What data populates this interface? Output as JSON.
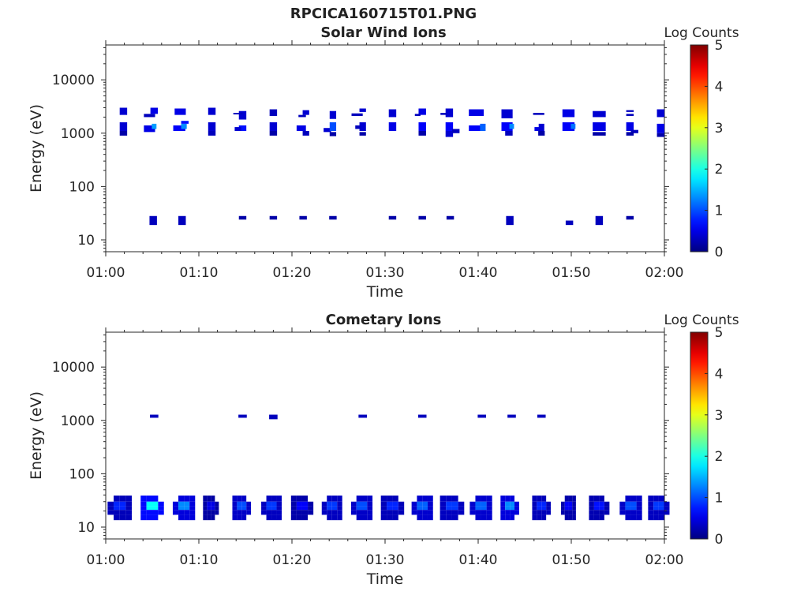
{
  "figure": {
    "filename": "RPCICA160715T01.PNG",
    "background": "#ffffff"
  },
  "chart_data": [
    {
      "type": "heatmap",
      "title": "Solar Wind Ions",
      "xlabel": "Time",
      "ylabel": "Energy (eV)",
      "x_ticks": [
        "01:00",
        "01:10",
        "01:20",
        "01:30",
        "01:40",
        "01:50",
        "02:00"
      ],
      "xlim_minutes": [
        0,
        60
      ],
      "y_scale": "log",
      "y_ticks": [
        "10",
        "100",
        "1000",
        "10000"
      ],
      "ylim": [
        6,
        45000
      ],
      "colorbar": {
        "label": "Log Counts",
        "range": [
          0,
          5
        ],
        "ticks": [
          "0",
          "1",
          "2",
          "3",
          "4",
          "5"
        ],
        "colormap": "jet"
      },
      "cells": [
        {
          "t": 1.9,
          "w": 0.8,
          "e": [
            1100,
            1600
          ],
          "v": 0.4
        },
        {
          "t": 1.9,
          "w": 0.8,
          "e": [
            2200,
            3000
          ],
          "v": 0.4
        },
        {
          "t": 1.9,
          "w": 0.8,
          "e": [
            900,
            1100
          ],
          "v": 0.2
        },
        {
          "t": 4.7,
          "w": 1.2,
          "e": [
            1050,
            1400
          ],
          "v": 0.5
        },
        {
          "t": 4.7,
          "w": 1.2,
          "e": [
            2000,
            2300
          ],
          "v": 0.3
        },
        {
          "t": 5.2,
          "w": 0.5,
          "e": [
            1200,
            1500
          ],
          "v": 1.4
        },
        {
          "t": 5.2,
          "w": 0.8,
          "e": [
            2300,
            3000
          ],
          "v": 0.5
        },
        {
          "t": 7.9,
          "w": 1.3,
          "e": [
            1100,
            1400
          ],
          "v": 0.6
        },
        {
          "t": 8.4,
          "w": 0.6,
          "e": [
            1200,
            1500
          ],
          "v": 1.3
        },
        {
          "t": 8.0,
          "w": 1.2,
          "e": [
            2200,
            2900
          ],
          "v": 0.5
        },
        {
          "t": 8.5,
          "w": 0.8,
          "e": [
            1500,
            1700
          ],
          "v": 0.7
        },
        {
          "t": 11.4,
          "w": 0.8,
          "e": [
            1100,
            1600
          ],
          "v": 0.4
        },
        {
          "t": 11.4,
          "w": 0.8,
          "e": [
            900,
            1100
          ],
          "v": 0.3
        },
        {
          "t": 11.4,
          "w": 0.8,
          "e": [
            2200,
            3000
          ],
          "v": 0.4
        },
        {
          "t": 14.7,
          "w": 0.8,
          "e": [
            1100,
            1400
          ],
          "v": 0.7
        },
        {
          "t": 14.2,
          "w": 0.7,
          "e": [
            1100,
            1300
          ],
          "v": 0.4
        },
        {
          "t": 14.7,
          "w": 0.8,
          "e": [
            1800,
            2600
          ],
          "v": 0.4
        },
        {
          "t": 14.2,
          "w": 1.0,
          "e": [
            2250,
            2400
          ],
          "v": 0.3
        },
        {
          "t": 18.0,
          "w": 0.8,
          "e": [
            1100,
            1600
          ],
          "v": 0.4
        },
        {
          "t": 18.0,
          "w": 0.8,
          "e": [
            900,
            1100
          ],
          "v": 0.2
        },
        {
          "t": 18.0,
          "w": 0.8,
          "e": [
            2100,
            2800
          ],
          "v": 0.3
        },
        {
          "t": 21.0,
          "w": 1.0,
          "e": [
            1100,
            1400
          ],
          "v": 0.5
        },
        {
          "t": 21.1,
          "w": 0.8,
          "e": [
            2000,
            2200
          ],
          "v": 0.3
        },
        {
          "t": 21.5,
          "w": 0.7,
          "e": [
            2200,
            2700
          ],
          "v": 0.4
        },
        {
          "t": 21.5,
          "w": 0.7,
          "e": [
            900,
            1100
          ],
          "v": 0.3
        },
        {
          "t": 23.8,
          "w": 0.8,
          "e": [
            1050,
            1250
          ],
          "v": 0.4
        },
        {
          "t": 24.4,
          "w": 0.7,
          "e": [
            1100,
            1600
          ],
          "v": 1.0
        },
        {
          "t": 24.4,
          "w": 0.7,
          "e": [
            1850,
            2600
          ],
          "v": 0.4
        },
        {
          "t": 24.4,
          "w": 0.7,
          "e": [
            880,
            1050
          ],
          "v": 0.2
        },
        {
          "t": 27.6,
          "w": 0.7,
          "e": [
            1100,
            1600
          ],
          "v": 0.4
        },
        {
          "t": 27.1,
          "w": 0.6,
          "e": [
            1200,
            1400
          ],
          "v": 0.3
        },
        {
          "t": 27.0,
          "w": 1.2,
          "e": [
            2100,
            2350
          ],
          "v": 0.3
        },
        {
          "t": 27.6,
          "w": 0.7,
          "e": [
            2500,
            2900
          ],
          "v": 0.4
        },
        {
          "t": 27.6,
          "w": 0.7,
          "e": [
            900,
            1050
          ],
          "v": 0.2
        },
        {
          "t": 30.8,
          "w": 0.8,
          "e": [
            1100,
            1600
          ],
          "v": 0.5
        },
        {
          "t": 30.8,
          "w": 0.8,
          "e": [
            2000,
            2800
          ],
          "v": 0.4
        },
        {
          "t": 34.0,
          "w": 0.8,
          "e": [
            1100,
            1600
          ],
          "v": 0.6
        },
        {
          "t": 34.0,
          "w": 0.8,
          "e": [
            2200,
            2900
          ],
          "v": 0.5
        },
        {
          "t": 33.5,
          "w": 0.6,
          "e": [
            2100,
            2300
          ],
          "v": 0.3
        },
        {
          "t": 34.0,
          "w": 0.8,
          "e": [
            900,
            1100
          ],
          "v": 0.2
        },
        {
          "t": 36.9,
          "w": 0.8,
          "e": [
            1100,
            1600
          ],
          "v": 0.6
        },
        {
          "t": 36.9,
          "w": 0.8,
          "e": [
            850,
            1100
          ],
          "v": 0.4
        },
        {
          "t": 37.6,
          "w": 0.8,
          "e": [
            1000,
            1200
          ],
          "v": 0.3
        },
        {
          "t": 36.9,
          "w": 0.8,
          "e": [
            2000,
            2900
          ],
          "v": 0.4
        },
        {
          "t": 36.3,
          "w": 0.7,
          "e": [
            2200,
            2400
          ],
          "v": 0.3
        },
        {
          "t": 39.8,
          "w": 1.6,
          "e": [
            1100,
            1400
          ],
          "v": 0.6
        },
        {
          "t": 40.5,
          "w": 0.6,
          "e": [
            1100,
            1500
          ],
          "v": 1.1
        },
        {
          "t": 39.8,
          "w": 1.6,
          "e": [
            2100,
            2800
          ],
          "v": 0.5
        },
        {
          "t": 43.1,
          "w": 1.2,
          "e": [
            1100,
            1600
          ],
          "v": 0.6
        },
        {
          "t": 43.6,
          "w": 0.5,
          "e": [
            1200,
            1500
          ],
          "v": 1.3
        },
        {
          "t": 43.1,
          "w": 1.2,
          "e": [
            1900,
            2800
          ],
          "v": 0.4
        },
        {
          "t": 43.3,
          "w": 0.8,
          "e": [
            900,
            1100
          ],
          "v": 0.3
        },
        {
          "t": 46.5,
          "w": 0.9,
          "e": [
            1100,
            1300
          ],
          "v": 0.5
        },
        {
          "t": 46.8,
          "w": 0.6,
          "e": [
            1000,
            1500
          ],
          "v": 0.4
        },
        {
          "t": 46.5,
          "w": 1.2,
          "e": [
            2200,
            2400
          ],
          "v": 0.3
        },
        {
          "t": 46.8,
          "w": 0.7,
          "e": [
            900,
            1100
          ],
          "v": 0.2
        },
        {
          "t": 49.7,
          "w": 1.3,
          "e": [
            1100,
            1600
          ],
          "v": 0.6
        },
        {
          "t": 50.2,
          "w": 0.5,
          "e": [
            1200,
            1500
          ],
          "v": 1.2
        },
        {
          "t": 49.7,
          "w": 1.3,
          "e": [
            2000,
            2800
          ],
          "v": 0.5
        },
        {
          "t": 53.0,
          "w": 1.4,
          "e": [
            1100,
            1600
          ],
          "v": 0.5
        },
        {
          "t": 53.0,
          "w": 1.4,
          "e": [
            2000,
            2600
          ],
          "v": 0.4
        },
        {
          "t": 53.0,
          "w": 1.4,
          "e": [
            900,
            1050
          ],
          "v": 0.2
        },
        {
          "t": 56.3,
          "w": 0.8,
          "e": [
            1100,
            1600
          ],
          "v": 0.5
        },
        {
          "t": 56.3,
          "w": 0.8,
          "e": [
            2100,
            2300
          ],
          "v": 0.3
        },
        {
          "t": 56.3,
          "w": 0.8,
          "e": [
            2500,
            2700
          ],
          "v": 0.3
        },
        {
          "t": 56.8,
          "w": 0.8,
          "e": [
            1000,
            1150
          ],
          "v": 0.3
        },
        {
          "t": 56.3,
          "w": 0.8,
          "e": [
            900,
            1050
          ],
          "v": 0.2
        },
        {
          "t": 59.6,
          "w": 0.8,
          "e": [
            1000,
            1500
          ],
          "v": 0.5
        },
        {
          "t": 59.6,
          "w": 0.8,
          "e": [
            2000,
            2800
          ],
          "v": 0.4
        },
        {
          "t": 59.6,
          "w": 0.8,
          "e": [
            850,
            1000
          ],
          "v": 0.2
        },
        {
          "t": 5.1,
          "w": 0.8,
          "e": [
            19,
            28
          ],
          "v": 0.3
        },
        {
          "t": 8.2,
          "w": 0.8,
          "e": [
            19,
            28
          ],
          "v": 0.3
        },
        {
          "t": 14.7,
          "w": 0.8,
          "e": [
            24,
            28
          ],
          "v": 0.2
        },
        {
          "t": 18.0,
          "w": 0.8,
          "e": [
            24,
            28
          ],
          "v": 0.2
        },
        {
          "t": 21.2,
          "w": 0.8,
          "e": [
            24,
            28
          ],
          "v": 0.2
        },
        {
          "t": 24.4,
          "w": 0.8,
          "e": [
            24,
            28
          ],
          "v": 0.2
        },
        {
          "t": 30.8,
          "w": 0.8,
          "e": [
            24,
            28
          ],
          "v": 0.2
        },
        {
          "t": 34.0,
          "w": 0.8,
          "e": [
            24,
            28
          ],
          "v": 0.2
        },
        {
          "t": 37.0,
          "w": 0.8,
          "e": [
            24,
            28
          ],
          "v": 0.2
        },
        {
          "t": 43.4,
          "w": 0.8,
          "e": [
            19,
            28
          ],
          "v": 0.3
        },
        {
          "t": 49.8,
          "w": 0.8,
          "e": [
            19,
            23
          ],
          "v": 0.3
        },
        {
          "t": 53.0,
          "w": 0.8,
          "e": [
            19,
            28
          ],
          "v": 0.3
        },
        {
          "t": 56.3,
          "w": 0.8,
          "e": [
            24,
            28
          ],
          "v": 0.2
        }
      ]
    },
    {
      "type": "heatmap",
      "title": "Cometary Ions",
      "xlabel": "Time",
      "ylabel": "Energy (eV)",
      "x_ticks": [
        "01:00",
        "01:10",
        "01:20",
        "01:30",
        "01:40",
        "01:50",
        "02:00"
      ],
      "xlim_minutes": [
        0,
        60
      ],
      "y_scale": "log",
      "y_ticks": [
        "10",
        "100",
        "1000",
        "10000"
      ],
      "ylim": [
        6,
        45000
      ],
      "colorbar": {
        "label": "Log Counts",
        "range": [
          0,
          5
        ],
        "ticks": [
          "0",
          "1",
          "2",
          "3",
          "4",
          "5"
        ],
        "colormap": "jet"
      },
      "groups": [
        {
          "t": 1.5,
          "w": 2.6,
          "core": 0.8
        },
        {
          "t": 5.0,
          "w": 2.5,
          "core": 1.9
        },
        {
          "t": 8.4,
          "w": 2.4,
          "core": 1.3
        },
        {
          "t": 11.3,
          "w": 1.7,
          "core": 0.5
        },
        {
          "t": 14.6,
          "w": 2.0,
          "core": 1.0
        },
        {
          "t": 17.8,
          "w": 2.2,
          "core": 0.9
        },
        {
          "t": 21.1,
          "w": 2.4,
          "core": 0.6
        },
        {
          "t": 24.3,
          "w": 2.2,
          "core": 0.9
        },
        {
          "t": 27.5,
          "w": 2.3,
          "core": 1.0
        },
        {
          "t": 30.8,
          "w": 2.5,
          "core": 0.8
        },
        {
          "t": 34.0,
          "w": 2.3,
          "core": 1.1
        },
        {
          "t": 37.2,
          "w": 2.6,
          "core": 0.9
        },
        {
          "t": 40.3,
          "w": 2.4,
          "core": 1.1
        },
        {
          "t": 43.4,
          "w": 2.0,
          "core": 1.3
        },
        {
          "t": 46.8,
          "w": 2.0,
          "core": 0.8
        },
        {
          "t": 49.7,
          "w": 1.6,
          "core": 0.6
        },
        {
          "t": 53.0,
          "w": 2.2,
          "core": 0.7
        },
        {
          "t": 56.4,
          "w": 2.4,
          "core": 1.0
        },
        {
          "t": 59.4,
          "w": 2.3,
          "core": 0.9
        }
      ],
      "cells": [
        {
          "t": 5.2,
          "w": 0.9,
          "e": [
            1120,
            1280
          ],
          "v": 0.3
        },
        {
          "t": 14.7,
          "w": 0.9,
          "e": [
            1120,
            1280
          ],
          "v": 0.3
        },
        {
          "t": 18.0,
          "w": 0.9,
          "e": [
            1050,
            1280
          ],
          "v": 0.3
        },
        {
          "t": 27.6,
          "w": 0.9,
          "e": [
            1120,
            1280
          ],
          "v": 0.3
        },
        {
          "t": 34.0,
          "w": 0.9,
          "e": [
            1120,
            1280
          ],
          "v": 0.3
        },
        {
          "t": 40.4,
          "w": 0.9,
          "e": [
            1120,
            1280
          ],
          "v": 0.3
        },
        {
          "t": 43.6,
          "w": 0.9,
          "e": [
            1120,
            1280
          ],
          "v": 0.3
        },
        {
          "t": 46.8,
          "w": 0.9,
          "e": [
            1120,
            1280
          ],
          "v": 0.3
        }
      ]
    }
  ]
}
